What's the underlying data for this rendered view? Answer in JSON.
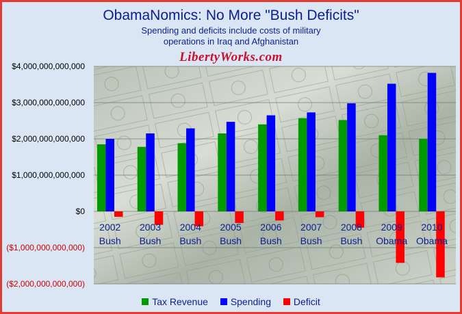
{
  "chart_data": {
    "type": "bar",
    "title": "ObamaNomics: No More \"Bush Deficits\"",
    "subtitle_lines": [
      "Spending and deficits include costs of military",
      "operations in Iraq and Afghanistan"
    ],
    "watermark": "LibertyWorks.com",
    "categories": [
      {
        "year": "2002",
        "president": "Bush"
      },
      {
        "year": "2003",
        "president": "Bush"
      },
      {
        "year": "2004",
        "president": "Bush"
      },
      {
        "year": "2005",
        "president": "Bush"
      },
      {
        "year": "2006",
        "president": "Bush"
      },
      {
        "year": "2007",
        "president": "Bush"
      },
      {
        "year": "2008",
        "president": "Bush"
      },
      {
        "year": "2009",
        "president": "Obama"
      },
      {
        "year": "2010",
        "president": "Obama"
      }
    ],
    "series": [
      {
        "name": "Tax Revenue",
        "color": "#009900",
        "values": [
          1850000000000,
          1780000000000,
          1880000000000,
          2150000000000,
          2400000000000,
          2570000000000,
          2520000000000,
          2100000000000,
          2000000000000
        ]
      },
      {
        "name": "Spending",
        "color": "#0000ff",
        "values": [
          2000000000000,
          2150000000000,
          2290000000000,
          2470000000000,
          2650000000000,
          2730000000000,
          2980000000000,
          3520000000000,
          3820000000000
        ]
      },
      {
        "name": "Deficit",
        "color": "#ff0000",
        "values": [
          -150000000000,
          -370000000000,
          -410000000000,
          -320000000000,
          -250000000000,
          -160000000000,
          -450000000000,
          -1420000000000,
          -1820000000000
        ]
      }
    ],
    "ylim": [
      -2000000000000,
      4000000000000
    ],
    "yticks": [
      {
        "value": 4000000000000,
        "label": "$4,000,000,000,000"
      },
      {
        "value": 3000000000000,
        "label": "$3,000,000,000,000"
      },
      {
        "value": 2000000000000,
        "label": "$2,000,000,000,000"
      },
      {
        "value": 1000000000000,
        "label": "$1,000,000,000,000"
      },
      {
        "value": 0,
        "label": "$0"
      },
      {
        "value": -1000000000000,
        "label": "($1,000,000,000,000)"
      },
      {
        "value": -2000000000000,
        "label": "($2,000,000,000,000)"
      }
    ],
    "positive_tick_color": "#000000",
    "negative_tick_color": "#cc0000",
    "grid": true,
    "legend_position": "bottom"
  }
}
